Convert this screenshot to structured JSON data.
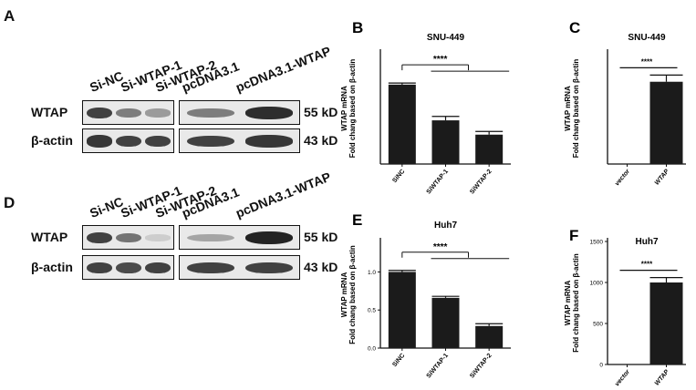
{
  "figure": {
    "panels": [
      {
        "letter": "A",
        "lanes_left": [
          "Si-NC",
          "Si-WTAP-1",
          "Si-WTAP-2"
        ],
        "lanes_right": [
          "pcDNA3.1",
          "pcDNA3.1-WTAP"
        ],
        "rows": [
          {
            "label": "WTAP",
            "size": "55 kD",
            "bands_left": [
              0.85,
              0.55,
              0.4
            ],
            "bands_right": [
              0.55,
              0.95
            ]
          },
          {
            "label": "β-actin",
            "size": "43 kD",
            "bands_left": [
              0.9,
              0.85,
              0.85
            ],
            "bands_right": [
              0.85,
              0.9
            ]
          }
        ]
      },
      {
        "letter": "D",
        "lanes_left": [
          "Si-NC",
          "Si-WTAP-1",
          "Si-WTAP-2"
        ],
        "lanes_right": [
          "pcDNA3.1",
          "pcDNA3.1-WTAP"
        ],
        "rows": [
          {
            "label": "WTAP",
            "size": "55 kD",
            "bands_left": [
              0.85,
              0.6,
              0.15
            ],
            "bands_right": [
              0.35,
              1.0
            ]
          },
          {
            "label": "β-actin",
            "size": "43 kD",
            "bands_left": [
              0.85,
              0.8,
              0.85
            ],
            "bands_right": [
              0.85,
              0.85
            ]
          }
        ]
      }
    ]
  },
  "chart_data": [
    {
      "letter": "B",
      "type": "bar",
      "title": "SNU-449",
      "ylabel_lines": [
        "WTAP mRNA",
        "Fold chang based on β-actin"
      ],
      "categories": [
        "SiNC",
        "SiWTAP-1",
        "SiWTAP-2"
      ],
      "values": [
        1.0,
        0.55,
        0.37
      ],
      "errors": [
        0.02,
        0.05,
        0.04
      ],
      "ylim": [
        0,
        1.4
      ],
      "significance": "****"
    },
    {
      "letter": "C",
      "type": "bar",
      "title": "SNU-449",
      "ylabel_lines": [
        "WTAP mRNA",
        "Fold chang based on β-actin"
      ],
      "categories": [
        "vector",
        "WTAP"
      ],
      "values": [
        1,
        740
      ],
      "errors": [
        0,
        60
      ],
      "ylim": [
        0,
        1000
      ],
      "significance": "****"
    },
    {
      "letter": "E",
      "type": "bar",
      "title": "Huh7",
      "ylabel_lines": [
        "WTAP mRNA",
        "Fold chang based on β-actin"
      ],
      "categories": [
        "SiNC",
        "SiWTAP-1",
        "SiWTAP-2"
      ],
      "values": [
        1.0,
        0.66,
        0.29
      ],
      "errors": [
        0.02,
        0.02,
        0.03
      ],
      "ylim": [
        0,
        1.4
      ],
      "yticks": [
        "0.0",
        "0.5",
        "1.0"
      ],
      "significance": "****"
    },
    {
      "letter": "F",
      "type": "bar",
      "title": "Huh7",
      "ylabel_lines": [
        "WTAP mRNA",
        "Fold chang based on β-actin"
      ],
      "categories": [
        "vector",
        "WTAP"
      ],
      "values": [
        1,
        1000
      ],
      "errors": [
        0,
        60
      ],
      "ylim": [
        0,
        1500
      ],
      "yticks": [
        "0",
        "500",
        "1000",
        "1500"
      ],
      "significance": "****"
    }
  ]
}
